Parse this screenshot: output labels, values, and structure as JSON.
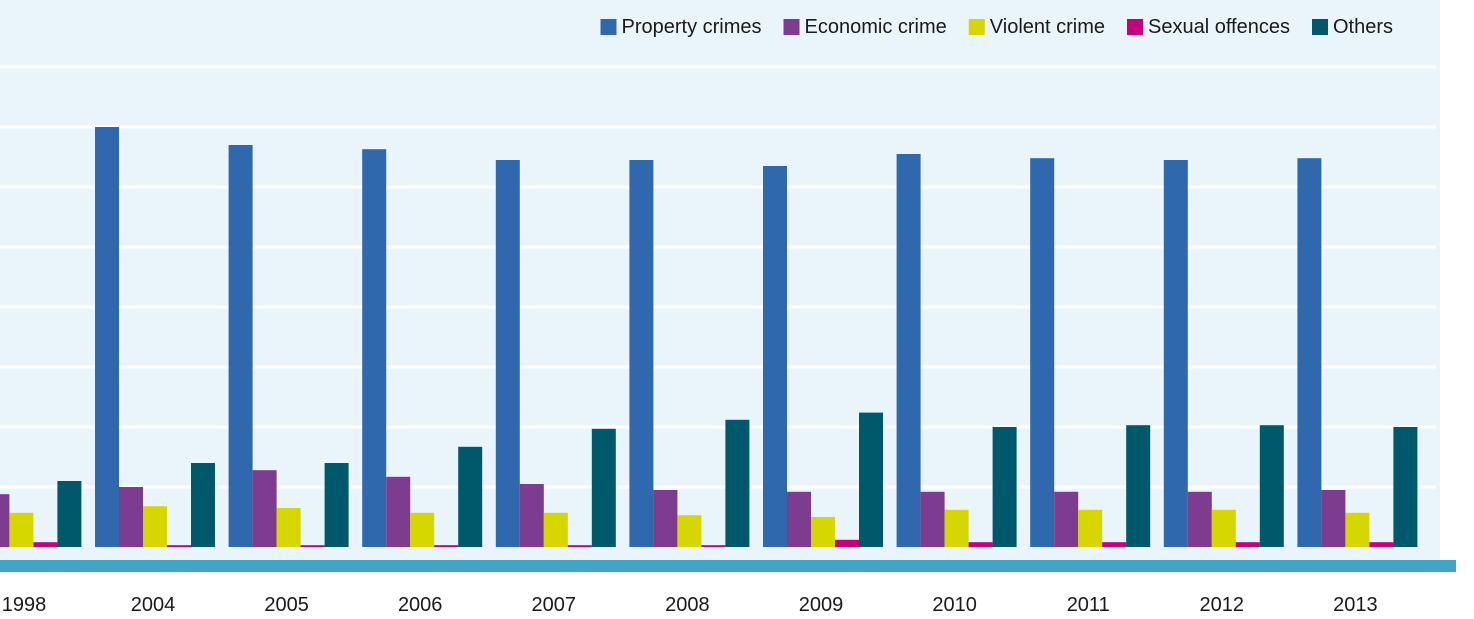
{
  "chart_data": {
    "type": "bar",
    "title": "",
    "xlabel": "",
    "ylabel": "",
    "categories": [
      "1998",
      "2004",
      "2005",
      "2006",
      "2007",
      "2008",
      "2009",
      "2010",
      "2011",
      "2012",
      "2013"
    ],
    "ylim": [
      0,
      7
    ],
    "grid": true,
    "legend_position": "top-right",
    "series": [
      {
        "name": "Property crimes",
        "color": "#2f68ad",
        "values": [
          0,
          7.0,
          6.7,
          6.63,
          6.45,
          6.45,
          6.35,
          6.55,
          6.48,
          6.45,
          6.48
        ]
      },
      {
        "name": "Economic crime",
        "color": "#7d3c8f",
        "values": [
          0.88,
          1.0,
          1.28,
          1.17,
          1.05,
          0.95,
          0.92,
          0.92,
          0.92,
          0.92,
          0.95
        ]
      },
      {
        "name": "Violent crime",
        "color": "#d6d600",
        "values": [
          0.57,
          0.68,
          0.65,
          0.57,
          0.57,
          0.53,
          0.5,
          0.62,
          0.62,
          0.62,
          0.57
        ]
      },
      {
        "name": "Sexual offences",
        "color": "#c5007a",
        "values": [
          0.08,
          0.03,
          0.03,
          0.03,
          0.03,
          0.03,
          0.12,
          0.08,
          0.08,
          0.08,
          0.08
        ]
      },
      {
        "name": "Others",
        "color": "#00596b",
        "values": [
          1.1,
          1.4,
          1.4,
          1.67,
          1.97,
          2.12,
          2.24,
          2.0,
          2.03,
          2.03,
          2.0
        ]
      }
    ]
  },
  "colors": {
    "plot_background": "#eaf4fb",
    "gridline": "#ffffff",
    "axis_band": "#41a5c6"
  }
}
